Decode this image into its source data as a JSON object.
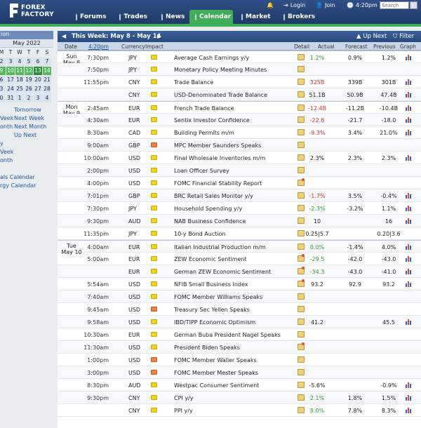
{
  "nav": {
    "logo_line1": "FOREX",
    "logo_line2": "FACTORY",
    "tabs": [
      "Forums",
      "Trades",
      "News",
      "Calendar",
      "Market",
      "Brokers"
    ],
    "active_tab": "Calendar",
    "login": "Login",
    "join": "Join",
    "clock": "4:20pm",
    "search_placeholder": "Search"
  },
  "sidebar": {
    "partial_title": "ion",
    "month_label": "May 2022",
    "weekday_heads": [
      "M",
      "T",
      "W",
      "T",
      "F",
      "S"
    ],
    "weeks": [
      [
        "2",
        "3",
        "4",
        "5",
        "6",
        "7"
      ],
      [
        "9",
        "10",
        "11",
        "12",
        "13",
        "14"
      ],
      [
        "6",
        "17",
        "18",
        "19",
        "20",
        "21"
      ],
      [
        "3",
        "24",
        "25",
        "26",
        "27",
        "28"
      ],
      [
        "0",
        "31",
        "1",
        "2",
        "3",
        "4"
      ]
    ],
    "links": [
      {
        "left": "",
        "right": "Tomorrow"
      },
      {
        "left": "Veek",
        "right": "Next Week"
      },
      {
        "left": "onth",
        "right": "Next Month"
      },
      {
        "left": "",
        "right": "Up Next"
      },
      {
        "left": "y",
        "right": ""
      },
      {
        "left": "Veek",
        "right": ""
      },
      {
        "left": "onth",
        "right": ""
      },
      {
        "left": "",
        "right": ""
      },
      {
        "left": "als Calendar",
        "right": ""
      },
      {
        "left": "rgy Calendar",
        "right": ""
      }
    ]
  },
  "calendar": {
    "week_label": "This Week: May 8 - May 14",
    "up_next": "Up Next",
    "filter": "Filter",
    "columns": {
      "date": "Date",
      "time": "4:20pm",
      "currency": "Currency",
      "impact": "Impact",
      "detail": "Detail",
      "actual": "Actual",
      "forecast": "Forecast",
      "previous": "Previous",
      "graph": "Graph"
    },
    "rows": [
      {
        "day": "Sun",
        "date": "May 8",
        "time": "7:30pm",
        "cur": "JPY",
        "imp": "y",
        "event": "Average Cash Earnings y/y",
        "actual": "1.2%",
        "ac": "green",
        "forecast": "0.9%",
        "previous": "1.2%",
        "graph": true,
        "star": false
      },
      {
        "day": "",
        "date": "",
        "time": "7:50pm",
        "cur": "JPY",
        "imp": "y",
        "event": "Monetary Policy Meeting Minutes",
        "actual": "",
        "ac": "",
        "forecast": "",
        "previous": "",
        "graph": false,
        "star": false
      },
      {
        "day": "",
        "date": "",
        "time": "11:55pm",
        "cur": "CNY",
        "imp": "y",
        "event": "Trade Balance",
        "actual": "325B",
        "ac": "red",
        "forecast": "339B",
        "previous": "301B",
        "graph": true,
        "star": false
      },
      {
        "day": "",
        "date": "",
        "time": "",
        "cur": "CNY",
        "imp": "y",
        "event": "USD-Denominated Trade Balance",
        "actual": "51.1B",
        "ac": "",
        "forecast": "50.9B",
        "previous": "47.4B",
        "graph": true,
        "star": false
      },
      {
        "day": "Mon",
        "date": "May 9",
        "time": "2:45am",
        "cur": "EUR",
        "imp": "y",
        "event": "French Trade Balance",
        "actual": "-12.4B",
        "ac": "red",
        "forecast": "-11.2B",
        "previous": "-10.4B",
        "graph": true,
        "star": false
      },
      {
        "day": "",
        "date": "",
        "time": "4:30am",
        "cur": "EUR",
        "imp": "y",
        "event": "Sentix Investor Confidence",
        "actual": "-22.6",
        "ac": "red",
        "forecast": "-21.7",
        "previous": "-18.0",
        "graph": true,
        "star": false
      },
      {
        "day": "",
        "date": "",
        "time": "8:30am",
        "cur": "CAD",
        "imp": "y",
        "event": "Building Permits m/m",
        "actual": "-9.3%",
        "ac": "red",
        "forecast": "3.4%",
        "previous": "21.0%",
        "graph": true,
        "star": false
      },
      {
        "day": "",
        "date": "",
        "time": "9:00am",
        "cur": "GBP",
        "imp": "o",
        "event": "MPC Member Saunders Speaks",
        "actual": "",
        "ac": "",
        "forecast": "",
        "previous": "",
        "graph": false,
        "star": false
      },
      {
        "day": "",
        "date": "",
        "time": "10:00am",
        "cur": "USD",
        "imp": "y",
        "event": "Final Wholesale Inventories m/m",
        "actual": "2.3%",
        "ac": "",
        "forecast": "2.3%",
        "previous": "2.3%",
        "graph": true,
        "star": false
      },
      {
        "day": "",
        "date": "",
        "time": "2:00pm",
        "cur": "USD",
        "imp": "y",
        "event": "Loan Officer Survey",
        "actual": "",
        "ac": "",
        "forecast": "",
        "previous": "",
        "graph": false,
        "star": false
      },
      {
        "day": "",
        "date": "",
        "time": "4:00pm",
        "cur": "USD",
        "imp": "y",
        "event": "FOMC Financial Stability Report",
        "actual": "",
        "ac": "",
        "forecast": "",
        "previous": "",
        "graph": false,
        "star": true
      },
      {
        "day": "",
        "date": "",
        "time": "7:01pm",
        "cur": "GBP",
        "imp": "y",
        "event": "BRC Retail Sales Monitor y/y",
        "actual": "-1.7%",
        "ac": "red",
        "forecast": "3.5%",
        "previous": "-0.4%",
        "graph": true,
        "star": false
      },
      {
        "day": "",
        "date": "",
        "time": "7:30pm",
        "cur": "JPY",
        "imp": "y",
        "event": "Household Spending y/y",
        "actual": "-2.3%",
        "ac": "green",
        "forecast": "-3.2%",
        "previous": "1.1%",
        "graph": true,
        "star": false
      },
      {
        "day": "",
        "date": "",
        "time": "9:30pm",
        "cur": "AUD",
        "imp": "y",
        "event": "NAB Business Confidence",
        "actual": "10",
        "ac": "",
        "forecast": "",
        "previous": "16",
        "graph": true,
        "star": false
      },
      {
        "day": "",
        "date": "",
        "time": "11:35pm",
        "cur": "JPY",
        "imp": "y",
        "event": "10-y Bond Auction",
        "actual": "0.25|5.7",
        "ac": "",
        "forecast": "",
        "previous": "0.20|3.6",
        "graph": false,
        "star": false
      },
      {
        "day": "Tue",
        "date": "May 10",
        "time": "4:00am",
        "cur": "EUR",
        "imp": "y",
        "event": "Italian Industrial Production m/m",
        "actual": "0.0%",
        "ac": "green",
        "forecast": "-1.4%",
        "previous": "4.0%",
        "graph": true,
        "star": false
      },
      {
        "day": "",
        "date": "",
        "time": "5:00am",
        "cur": "EUR",
        "imp": "y",
        "event": "ZEW Economic Sentiment",
        "actual": "-29.5",
        "ac": "green",
        "forecast": "-42.0",
        "previous": "-43.0",
        "graph": true,
        "star": true
      },
      {
        "day": "",
        "date": "",
        "time": "",
        "cur": "EUR",
        "imp": "y",
        "event": "German ZEW Economic Sentiment",
        "actual": "-34.3",
        "ac": "green",
        "forecast": "-43.0",
        "previous": "-41.0",
        "graph": true,
        "star": true
      },
      {
        "day": "",
        "date": "",
        "time": "5:54am",
        "cur": "USD",
        "imp": "y",
        "event": "NFIB Small Business Index",
        "actual": "93.2",
        "ac": "",
        "forecast": "92.9",
        "previous": "93.2",
        "graph": true,
        "star": true
      },
      {
        "day": "",
        "date": "",
        "time": "7:40am",
        "cur": "USD",
        "imp": "y",
        "event": "FOMC Member Williams Speaks",
        "actual": "",
        "ac": "",
        "forecast": "",
        "previous": "",
        "graph": false,
        "star": false
      },
      {
        "day": "",
        "date": "",
        "time": "9:45am",
        "cur": "USD",
        "imp": "o",
        "event": "Treasury Sec Yellen Speaks",
        "actual": "",
        "ac": "",
        "forecast": "",
        "previous": "",
        "graph": false,
        "star": false
      },
      {
        "day": "",
        "date": "",
        "time": "9:58am",
        "cur": "USD",
        "imp": "y",
        "event": "IBD/TIPP Economic Optimism",
        "actual": "41.2",
        "ac": "",
        "forecast": "",
        "previous": "45.5",
        "graph": true,
        "star": false
      },
      {
        "day": "",
        "date": "",
        "time": "10:30am",
        "cur": "EUR",
        "imp": "y",
        "event": "German Buba President Nagel Speaks",
        "actual": "",
        "ac": "",
        "forecast": "",
        "previous": "",
        "graph": false,
        "star": false
      },
      {
        "day": "",
        "date": "",
        "time": "11:30am",
        "cur": "USD",
        "imp": "y",
        "event": "President Biden Speaks",
        "actual": "",
        "ac": "",
        "forecast": "",
        "previous": "",
        "graph": false,
        "star": true
      },
      {
        "day": "",
        "date": "",
        "time": "1:00pm",
        "cur": "USD",
        "imp": "o",
        "event": "FOMC Member Waller Speaks",
        "actual": "",
        "ac": "",
        "forecast": "",
        "previous": "",
        "graph": false,
        "star": false
      },
      {
        "day": "",
        "date": "",
        "time": "3:00pm",
        "cur": "USD",
        "imp": "o",
        "event": "FOMC Member Mester Speaks",
        "actual": "",
        "ac": "",
        "forecast": "",
        "previous": "",
        "graph": false,
        "star": false
      },
      {
        "day": "",
        "date": "",
        "time": "8:30pm",
        "cur": "AUD",
        "imp": "y",
        "event": "Westpac Consumer Sentiment",
        "actual": "-5.6%",
        "ac": "",
        "forecast": "",
        "previous": "-0.9%",
        "graph": true,
        "star": false
      },
      {
        "day": "",
        "date": "",
        "time": "9:30pm",
        "cur": "CNY",
        "imp": "y",
        "event": "CPI y/y",
        "actual": "2.1%",
        "ac": "green",
        "forecast": "1.8%",
        "previous": "1.5%",
        "graph": true,
        "star": false
      },
      {
        "day": "",
        "date": "",
        "time": "",
        "cur": "CNY",
        "imp": "y",
        "event": "PPI y/y",
        "actual": "8.0%",
        "ac": "green",
        "forecast": "7.8%",
        "previous": "8.3%",
        "graph": true,
        "star": false
      }
    ]
  }
}
